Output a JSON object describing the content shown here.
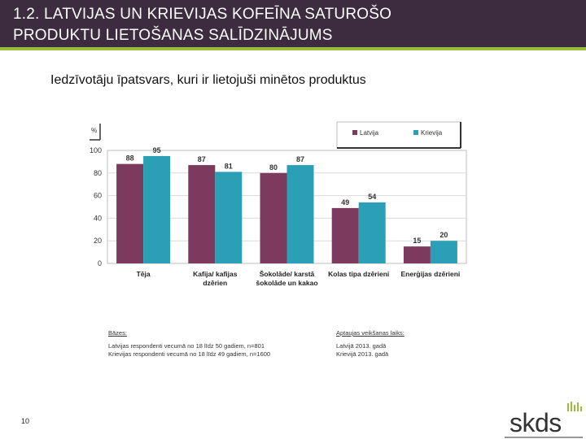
{
  "header": {
    "line1": "1.2. LATVIJAS UN KRIEVIJAS KOFEĪNA SATUROŠO",
    "line2": "PRODUKTU LIETOŠANAS SALĪDZINĀJUMS"
  },
  "subtitle": "Iedzīvotāju īpatsvars, kuri ir lietojuši minētos produktus",
  "colors": {
    "header": "#3d2b3f",
    "accent": "#9bbb3a",
    "latvija": "#7b3a5e",
    "krievija": "#2a9fb5"
  },
  "chart_data": {
    "type": "bar",
    "ylabel": "%",
    "ylim": [
      0,
      100
    ],
    "yticks": [
      0,
      20,
      40,
      60,
      80,
      100
    ],
    "categories": [
      [
        "Tēja"
      ],
      [
        "Kafija/ kafijas",
        "dzērien"
      ],
      [
        "Šokolāde/ karstā",
        "šokolāde un kakao"
      ],
      [
        "Kolas tipa dzērieni"
      ],
      [
        "Enerģijas dzērieni"
      ]
    ],
    "series": [
      {
        "name": "Latvija",
        "values": [
          88,
          87,
          80,
          49,
          15
        ]
      },
      {
        "name": "Krievija",
        "values": [
          95,
          81,
          87,
          54,
          20
        ]
      }
    ],
    "legend": "top-right"
  },
  "notes": {
    "base_heading": "Bāzes:",
    "base_lines": [
      "Latvijas respondenti vecumā no 18 līdz 50 gadiem, n=801",
      "Krievijas respondenti vecumā no 18 līdz 49 gadiem, n=1600"
    ],
    "time_heading": "Aptaujas veikšanas laiks:",
    "time_lines": [
      "Latvijā 2013. gadā",
      "Krievijā 2013. gadā"
    ]
  },
  "page_number": "10",
  "logo": "skds"
}
